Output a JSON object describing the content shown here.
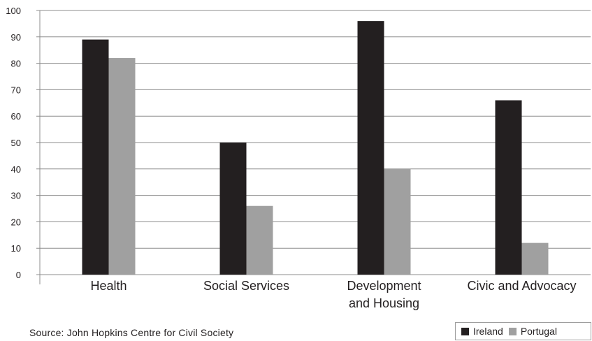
{
  "chart_data": {
    "type": "bar",
    "categories": [
      [
        "Health"
      ],
      [
        "Social Services"
      ],
      [
        "Development",
        "and Housing"
      ],
      [
        "Civic and Advocacy"
      ]
    ],
    "series": [
      {
        "name": "Ireland",
        "color": "#231f20",
        "values": [
          89,
          50,
          96,
          66
        ]
      },
      {
        "name": "Portugal",
        "color": "#a0a0a0",
        "values": [
          82,
          26,
          40,
          12
        ]
      }
    ],
    "ylim": [
      0,
      100
    ],
    "yticks": [
      0,
      10,
      20,
      30,
      40,
      50,
      60,
      70,
      80,
      90,
      100
    ],
    "grid": true,
    "legend_position": "bottom-right"
  },
  "source": "Source: John Hopkins Centre for Civil Society"
}
